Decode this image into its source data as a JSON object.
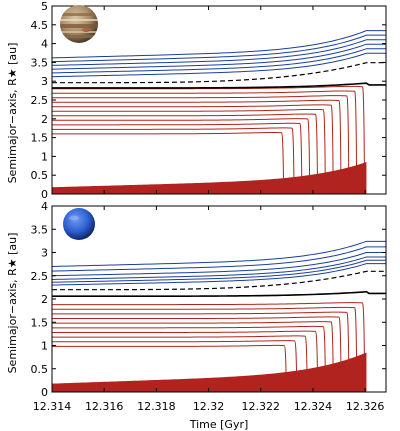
{
  "chart_data": [
    {
      "type": "line",
      "planet_icon": "jupiter-icon",
      "ylabel": "Semimajor−axis, R★ [au]",
      "ylim": [
        0,
        5
      ],
      "yticks": [
        0,
        0.5,
        1,
        1.5,
        2,
        2.5,
        3,
        3.5,
        4,
        4.5,
        5
      ],
      "ytick_labels": [
        "0",
        "0.5",
        "1",
        "1.5",
        "2",
        "2.5",
        "3",
        "3.5",
        "4",
        "4.5",
        "5"
      ],
      "xlim": [
        12.314,
        12.3268
      ],
      "blue_start": [
        3.12,
        3.22,
        3.32,
        3.42,
        3.52,
        3.62
      ],
      "dashed_start": 2.96,
      "black_start": 2.82,
      "black_end": 2.9,
      "red_start": [
        2.8,
        2.68,
        2.56,
        2.44,
        2.32,
        2.2,
        2.08,
        1.96,
        1.84,
        1.72,
        1.6
      ],
      "red_end": [
        12.3259,
        12.3256,
        12.3253,
        12.325,
        12.3247,
        12.3244,
        12.3241,
        12.3238,
        12.3235,
        12.3232,
        12.3228
      ],
      "radius_start": 0.18,
      "radius_end": 0.85,
      "colors": {
        "blue": "#1c3f9c",
        "red": "#b0231e",
        "black": "#000000",
        "fill": "#b0231e"
      }
    },
    {
      "type": "line",
      "planet_icon": "neptune-icon",
      "ylabel": "Semimajor−axis, R★ [au]",
      "xlabel": "Time [Gyr]",
      "ylim": [
        0,
        4
      ],
      "yticks": [
        0,
        0.5,
        1,
        1.5,
        2,
        2.5,
        3,
        3.5,
        4
      ],
      "ytick_labels": [
        "0",
        "0.5",
        "1",
        "1.5",
        "2",
        "2.5",
        "3",
        "3.5",
        "4"
      ],
      "xlim": [
        12.314,
        12.3268
      ],
      "xticks": [
        12.314,
        12.316,
        12.318,
        12.32,
        12.322,
        12.324,
        12.326
      ],
      "xtick_labels": [
        "12.314",
        "12.316",
        "12.318",
        "12.32",
        "12.322",
        "12.324",
        "12.326"
      ],
      "blue_start": [
        2.3,
        2.36,
        2.42,
        2.5,
        2.6,
        2.7
      ],
      "dashed_start": 2.2,
      "black_start": 2.06,
      "black_end": 2.12,
      "red_start": [
        1.88,
        1.78,
        1.68,
        1.58,
        1.48,
        1.38,
        1.28,
        1.18,
        1.08,
        0.98
      ],
      "red_end": [
        12.3259,
        12.3256,
        12.3253,
        12.325,
        12.3247,
        12.3244,
        12.3241,
        12.3237,
        12.3233,
        12.3229
      ],
      "radius_start": 0.18,
      "radius_end": 0.85,
      "colors": {
        "blue": "#1c3f9c",
        "red": "#b0231e",
        "black": "#000000",
        "fill": "#b0231e"
      }
    }
  ]
}
